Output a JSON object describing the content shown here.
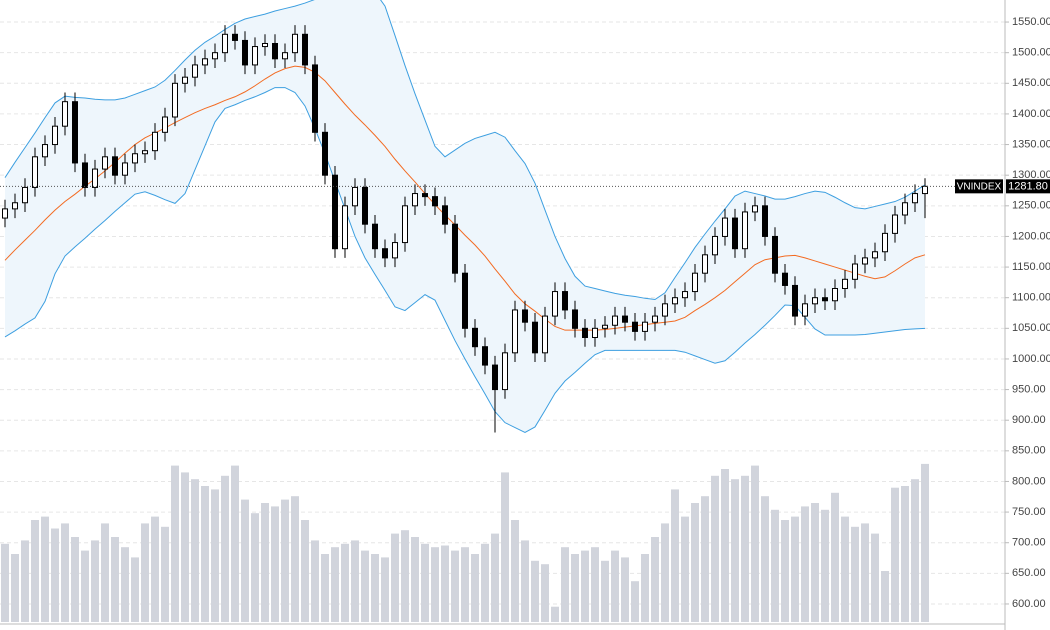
{
  "chart_data": {
    "type": "candlestick",
    "open": [
      1230,
      1245,
      1255,
      1280,
      1330,
      1350,
      1380,
      1420,
      1320,
      1280,
      1310,
      1330,
      1300,
      1320,
      1335,
      1340,
      1370,
      1395,
      1450,
      1460,
      1480,
      1490,
      1500,
      1530,
      1520,
      1480,
      1510,
      1515,
      1490,
      1500,
      1530,
      1480,
      1370,
      1300,
      1180,
      1250,
      1280,
      1220,
      1180,
      1165,
      1190,
      1250,
      1270,
      1265,
      1250,
      1220,
      1140,
      1050,
      1020,
      990,
      950,
      1010,
      1080,
      1060,
      1010,
      1070,
      1110,
      1080,
      1050,
      1035,
      1050,
      1055,
      1070,
      1060,
      1045,
      1060,
      1070,
      1090,
      1100,
      1110,
      1140,
      1170,
      1200,
      1230,
      1180,
      1240,
      1250,
      1200,
      1140,
      1120,
      1070,
      1090,
      1100,
      1095,
      1115,
      1130,
      1155,
      1165,
      1175,
      1205,
      1235,
      1255,
      1270
    ],
    "high": [
      1260,
      1270,
      1295,
      1345,
      1365,
      1395,
      1435,
      1435,
      1335,
      1325,
      1345,
      1345,
      1335,
      1350,
      1355,
      1385,
      1410,
      1465,
      1475,
      1495,
      1505,
      1515,
      1545,
      1545,
      1535,
      1525,
      1530,
      1530,
      1515,
      1545,
      1545,
      1495,
      1385,
      1315,
      1265,
      1295,
      1295,
      1235,
      1195,
      1205,
      1265,
      1285,
      1285,
      1280,
      1265,
      1235,
      1155,
      1065,
      1035,
      1005,
      1025,
      1095,
      1095,
      1075,
      1085,
      1125,
      1125,
      1095,
      1065,
      1065,
      1070,
      1085,
      1085,
      1075,
      1075,
      1085,
      1105,
      1115,
      1125,
      1155,
      1185,
      1215,
      1245,
      1245,
      1255,
      1265,
      1265,
      1215,
      1155,
      1135,
      1105,
      1115,
      1115,
      1130,
      1145,
      1170,
      1180,
      1190,
      1220,
      1250,
      1270,
      1285,
      1295
    ],
    "low": [
      1215,
      1230,
      1240,
      1265,
      1315,
      1335,
      1365,
      1305,
      1265,
      1265,
      1295,
      1285,
      1285,
      1305,
      1320,
      1325,
      1355,
      1380,
      1435,
      1445,
      1465,
      1475,
      1485,
      1505,
      1465,
      1465,
      1495,
      1475,
      1475,
      1485,
      1465,
      1355,
      1285,
      1165,
      1165,
      1235,
      1205,
      1165,
      1150,
      1150,
      1175,
      1235,
      1250,
      1235,
      1205,
      1125,
      1035,
      1005,
      975,
      880,
      935,
      995,
      1045,
      995,
      995,
      1055,
      1065,
      1035,
      1020,
      1020,
      1035,
      1040,
      1045,
      1030,
      1030,
      1045,
      1055,
      1075,
      1085,
      1095,
      1125,
      1155,
      1185,
      1165,
      1165,
      1225,
      1185,
      1125,
      1105,
      1055,
      1055,
      1075,
      1080,
      1080,
      1100,
      1115,
      1140,
      1150,
      1160,
      1190,
      1220,
      1240,
      1230
    ],
    "close": [
      1245,
      1255,
      1280,
      1330,
      1350,
      1380,
      1420,
      1320,
      1280,
      1310,
      1330,
      1300,
      1320,
      1335,
      1340,
      1370,
      1395,
      1450,
      1460,
      1480,
      1490,
      1500,
      1530,
      1520,
      1480,
      1510,
      1515,
      1490,
      1500,
      1530,
      1480,
      1370,
      1300,
      1180,
      1250,
      1280,
      1220,
      1180,
      1165,
      1190,
      1250,
      1270,
      1265,
      1250,
      1220,
      1140,
      1050,
      1020,
      990,
      950,
      1010,
      1080,
      1060,
      1010,
      1070,
      1110,
      1080,
      1050,
      1035,
      1050,
      1055,
      1070,
      1060,
      1045,
      1060,
      1070,
      1090,
      1100,
      1110,
      1140,
      1170,
      1200,
      1230,
      1180,
      1240,
      1250,
      1200,
      1140,
      1120,
      1070,
      1090,
      1100,
      1095,
      1115,
      1130,
      1155,
      1165,
      1175,
      1205,
      1235,
      1255,
      1270,
      1281.8
    ],
    "volume": [
      46,
      40,
      48,
      60,
      62,
      55,
      58,
      50,
      42,
      48,
      58,
      50,
      44,
      38,
      58,
      62,
      56,
      92,
      88,
      84,
      80,
      78,
      86,
      92,
      72,
      64,
      70,
      68,
      72,
      74,
      60,
      48,
      40,
      44,
      46,
      48,
      42,
      40,
      38,
      52,
      54,
      50,
      46,
      44,
      45,
      42,
      44,
      40,
      46,
      52,
      88,
      60,
      48,
      36,
      34,
      9,
      44,
      40,
      42,
      44,
      36,
      42,
      38,
      24,
      40,
      50,
      58,
      78,
      62,
      70,
      74,
      86,
      90,
      84,
      86,
      92,
      74,
      66,
      60,
      62,
      68,
      70,
      66,
      76,
      62,
      56,
      58,
      52,
      30,
      79,
      80,
      84,
      93
    ],
    "upper_band": {
      "color": "#3d9fe0",
      "values": [
        1296,
        1321,
        1345,
        1369,
        1394,
        1418,
        1429,
        1427,
        1426,
        1424,
        1423,
        1423,
        1426,
        1432,
        1438,
        1444,
        1455,
        1471,
        1488,
        1504,
        1517,
        1527,
        1538,
        1548,
        1555,
        1559,
        1563,
        1568,
        1572,
        1576,
        1581,
        1587,
        1591,
        1592,
        1594,
        1596,
        1597,
        1599,
        1576,
        1528,
        1479,
        1433,
        1390,
        1347,
        1330,
        1341,
        1352,
        1360,
        1365,
        1370,
        1362,
        1340,
        1319,
        1287,
        1243,
        1200,
        1164,
        1135,
        1119,
        1115,
        1111,
        1107,
        1104,
        1102,
        1099,
        1097,
        1108,
        1133,
        1157,
        1182,
        1204,
        1225,
        1245,
        1266,
        1274,
        1270,
        1266,
        1261,
        1261,
        1265,
        1270,
        1274,
        1272,
        1264,
        1255,
        1247,
        1245,
        1249,
        1253,
        1257,
        1264,
        1274,
        1284
      ]
    },
    "middle_band": {
      "color": "#f36b22",
      "values": [
        1161,
        1178,
        1194,
        1210,
        1227,
        1243,
        1257,
        1269,
        1282,
        1294,
        1307,
        1321,
        1336,
        1350,
        1361,
        1369,
        1377,
        1386,
        1394,
        1402,
        1409,
        1415,
        1422,
        1428,
        1436,
        1446,
        1457,
        1467,
        1474,
        1478,
        1476,
        1468,
        1454,
        1435,
        1416,
        1398,
        1382,
        1365,
        1347,
        1326,
        1307,
        1289,
        1270,
        1252,
        1235,
        1219,
        1202,
        1186,
        1168,
        1147,
        1127,
        1106,
        1090,
        1078,
        1065,
        1053,
        1047,
        1047,
        1047,
        1047,
        1048,
        1050,
        1052,
        1054,
        1056,
        1058,
        1060,
        1062,
        1068,
        1079,
        1089,
        1100,
        1112,
        1126,
        1140,
        1154,
        1162,
        1165,
        1168,
        1169,
        1165,
        1160,
        1155,
        1150,
        1145,
        1140,
        1135,
        1131,
        1134,
        1144,
        1155,
        1165,
        1170
      ]
    },
    "lower_band": {
      "color": "#3d9fe0",
      "values": [
        1036,
        1046,
        1057,
        1067,
        1094,
        1139,
        1168,
        1183,
        1197,
        1212,
        1226,
        1241,
        1255,
        1269,
        1273,
        1267,
        1260,
        1254,
        1270,
        1309,
        1348,
        1387,
        1409,
        1415,
        1422,
        1428,
        1435,
        1443,
        1443,
        1435,
        1413,
        1376,
        1335,
        1290,
        1245,
        1200,
        1165,
        1138,
        1112,
        1085,
        1079,
        1092,
        1105,
        1096,
        1063,
        1030,
        1000,
        971,
        943,
        914,
        896,
        888,
        880,
        889,
        916,
        944,
        964,
        978,
        993,
        1007,
        1014,
        1014,
        1014,
        1014,
        1014,
        1014,
        1014,
        1014,
        1011,
        1005,
        999,
        993,
        997,
        1011,
        1026,
        1040,
        1055,
        1071,
        1088,
        1087,
        1068,
        1049,
        1039,
        1039,
        1039,
        1039,
        1040,
        1042,
        1044,
        1046,
        1048,
        1049,
        1050
      ]
    },
    "band_fill": "#eef6fc",
    "up_color": "#ffffff",
    "down_color": "#000000",
    "volume_color": "#d1d4dc",
    "ylim": [
      557.5,
      1586
    ],
    "yticks": [
      {
        "value": 600,
        "label": "600.00"
      },
      {
        "value": 650,
        "label": "650.00"
      },
      {
        "value": 700,
        "label": "700.00"
      },
      {
        "value": 750,
        "label": "750.00"
      },
      {
        "value": 800,
        "label": "800.00"
      },
      {
        "value": 850,
        "label": "850.00"
      },
      {
        "value": 900,
        "label": "900.00"
      },
      {
        "value": 950,
        "label": "950.00"
      },
      {
        "value": 1000,
        "label": "1000.00"
      },
      {
        "value": 1050,
        "label": "1050.00"
      },
      {
        "value": 1100,
        "label": "1100.00"
      },
      {
        "value": 1150,
        "label": "1150.00"
      },
      {
        "value": 1200,
        "label": "1200.00"
      },
      {
        "value": 1250,
        "label": "1250.00"
      },
      {
        "value": 1300,
        "label": "1300.00"
      },
      {
        "value": 1350,
        "label": "1350.00"
      },
      {
        "value": 1400,
        "label": "1400.00"
      },
      {
        "value": 1450,
        "label": "1450.00"
      },
      {
        "value": 1500,
        "label": "1500.00"
      },
      {
        "value": 1550,
        "label": "1550.00"
      }
    ],
    "grid": true,
    "last": {
      "name": "VNINDEX",
      "value": 1281.8,
      "value_label": "1281.80"
    }
  }
}
